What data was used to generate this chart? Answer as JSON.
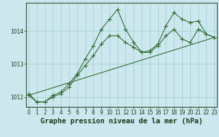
{
  "title": "Graphe pression niveau de la mer (hPa)",
  "background_color": "#cce8ee",
  "grid_color": "#99cccc",
  "line_color": "#2d6a2d",
  "tick_color": "#1a3a1a",
  "series1": {
    "x": [
      0,
      1,
      2,
      3,
      4,
      5,
      6,
      7,
      8,
      9,
      10,
      11,
      12,
      13,
      14,
      15,
      16,
      17,
      18,
      19,
      20,
      21,
      22,
      23
    ],
    "y": [
      1012.1,
      1011.85,
      1011.85,
      1012.05,
      1012.15,
      1012.4,
      1012.7,
      1013.15,
      1013.55,
      1014.05,
      1014.35,
      1014.65,
      1014.05,
      1013.65,
      1013.35,
      1013.35,
      1013.55,
      1013.85,
      1014.05,
      1013.75,
      1013.65,
      1014.05,
      1013.9,
      1013.8
    ]
  },
  "series2": {
    "x": [
      0,
      1,
      2,
      3,
      4,
      5,
      6,
      7,
      8,
      9,
      10,
      11,
      12,
      13,
      14,
      15,
      16,
      17,
      18,
      19,
      20,
      21,
      22,
      23
    ],
    "y": [
      1012.05,
      1011.85,
      1011.85,
      1012.0,
      1012.1,
      1012.3,
      1012.65,
      1012.95,
      1013.25,
      1013.6,
      1013.85,
      1013.85,
      1013.65,
      1013.5,
      1013.35,
      1013.4,
      1013.6,
      1014.15,
      1014.55,
      1014.35,
      1014.25,
      1014.3,
      1013.9,
      1013.8
    ]
  },
  "trend": {
    "x": [
      0,
      23
    ],
    "y": [
      1012.05,
      1013.8
    ]
  },
  "ylim": [
    1011.7,
    1014.85
  ],
  "yticks": [
    1012,
    1013,
    1014
  ],
  "xlim": [
    -0.3,
    23.3
  ],
  "xticks": [
    0,
    1,
    2,
    3,
    4,
    5,
    6,
    7,
    8,
    9,
    10,
    11,
    12,
    13,
    14,
    15,
    16,
    17,
    18,
    19,
    20,
    21,
    22,
    23
  ],
  "marker": "+",
  "markersize": 4,
  "linewidth": 0.8,
  "title_fontsize": 7.5,
  "tick_fontsize": 5.5
}
